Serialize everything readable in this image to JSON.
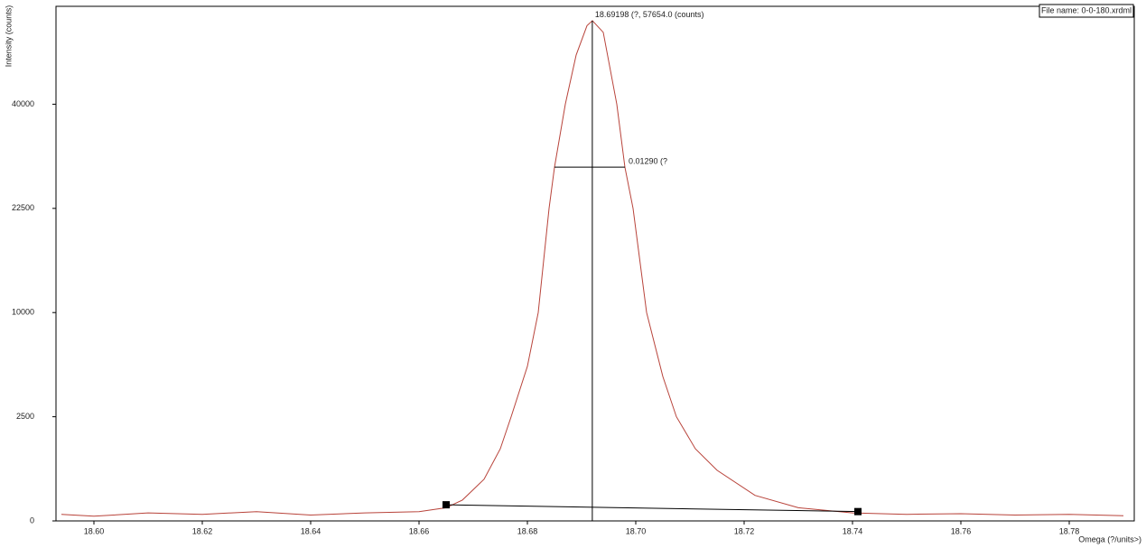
{
  "chart_data": {
    "type": "line",
    "y_scale": "sqrt",
    "y_label": "Intensity (counts)",
    "x_label": "Omega (?/units>)",
    "file_label": "File name: 0-0-180.xrdml",
    "xlim": [
      18.593,
      18.792
    ],
    "ylim": [
      0,
      61000
    ],
    "xticks": [
      {
        "value": 18.6,
        "label": "18.60"
      },
      {
        "value": 18.62,
        "label": "18.62"
      },
      {
        "value": 18.64,
        "label": "18.64"
      },
      {
        "value": 18.66,
        "label": "18.66"
      },
      {
        "value": 18.68,
        "label": "18.68"
      },
      {
        "value": 18.7,
        "label": "18.70"
      },
      {
        "value": 18.72,
        "label": "18.72"
      },
      {
        "value": 18.74,
        "label": "18.74"
      },
      {
        "value": 18.76,
        "label": "18.76"
      },
      {
        "value": 18.78,
        "label": "18.78"
      }
    ],
    "yticks": [
      0,
      2500,
      10000,
      22500,
      40000
    ],
    "color": "#b8433a",
    "x": [
      18.594,
      18.6,
      18.61,
      18.62,
      18.63,
      18.64,
      18.65,
      18.66,
      18.665,
      18.668,
      18.672,
      18.675,
      18.677,
      18.68,
      18.682,
      18.684,
      18.685,
      18.687,
      18.689,
      18.691,
      18.692,
      18.694,
      18.6965,
      18.698,
      18.6995,
      18.702,
      18.705,
      18.7075,
      18.711,
      18.715,
      18.722,
      18.73,
      18.74,
      18.75,
      18.76,
      18.77,
      18.78,
      18.79
    ],
    "values": [
      10,
      5,
      15,
      10,
      20,
      8,
      15,
      20,
      40,
      100,
      400,
      1200,
      2500,
      5500,
      10000,
      22500,
      28800,
      40000,
      50000,
      56500,
      57654,
      55000,
      40000,
      28800,
      22500,
      10000,
      4800,
      2500,
      1200,
      590,
      150,
      40,
      15,
      10,
      12,
      8,
      10,
      6
    ],
    "peak": {
      "x": 18.69198,
      "y": 57654,
      "label": "18.69198 (?, 57654.0 (counts)"
    },
    "fwhm": {
      "x1": 18.685,
      "x2": 18.698,
      "y": 28827,
      "label": "0.01290 (?"
    },
    "background": {
      "x": [
        18.665,
        18.741
      ],
      "y": [
        60,
        20
      ]
    }
  }
}
